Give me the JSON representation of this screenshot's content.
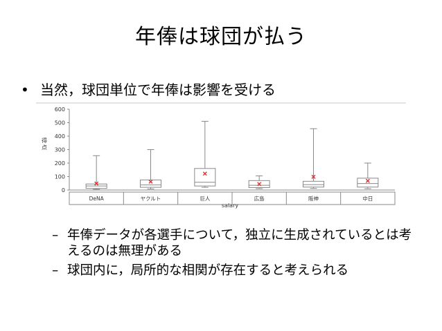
{
  "slide": {
    "title": "年俸は球団が払う",
    "bullet_symbol": "•",
    "bullet": "当然，球団単位で年俸は影響を受ける",
    "sub_bullets": [
      {
        "dash": "–",
        "text": "年俸データが各選手について，独立に生成されているとは考えるのは無理がある"
      },
      {
        "dash": "–",
        "text": "球団内に，局所的な相関が存在すると考えられる"
      }
    ]
  },
  "chart_data": {
    "type": "boxplot",
    "ylabel": "得点",
    "xlabel": "salary",
    "ylim": [
      0,
      600
    ],
    "yticks": [
      0,
      100,
      200,
      300,
      400,
      500,
      600
    ],
    "categories": [
      "DeNA",
      "ヤクルト",
      "巨人",
      "広島",
      "阪神",
      "中日"
    ],
    "boxes": [
      {
        "min": 5,
        "q1": 12,
        "median": 30,
        "q3": 45,
        "max": 255,
        "mean": 48
      },
      {
        "min": 8,
        "q1": 20,
        "median": 38,
        "q3": 75,
        "max": 300,
        "mean": 62
      },
      {
        "min": 20,
        "q1": 30,
        "median": 58,
        "q3": 160,
        "max": 510,
        "mean": 122
      },
      {
        "min": 10,
        "q1": 18,
        "median": 35,
        "q3": 70,
        "max": 105,
        "mean": 45
      },
      {
        "min": 12,
        "q1": 22,
        "median": 40,
        "q3": 65,
        "max": 455,
        "mean": 98
      },
      {
        "min": 10,
        "q1": 22,
        "median": 48,
        "q3": 88,
        "max": 200,
        "mean": 68
      }
    ],
    "box_color": "#888888",
    "mean_marker_color": "#e03030"
  }
}
